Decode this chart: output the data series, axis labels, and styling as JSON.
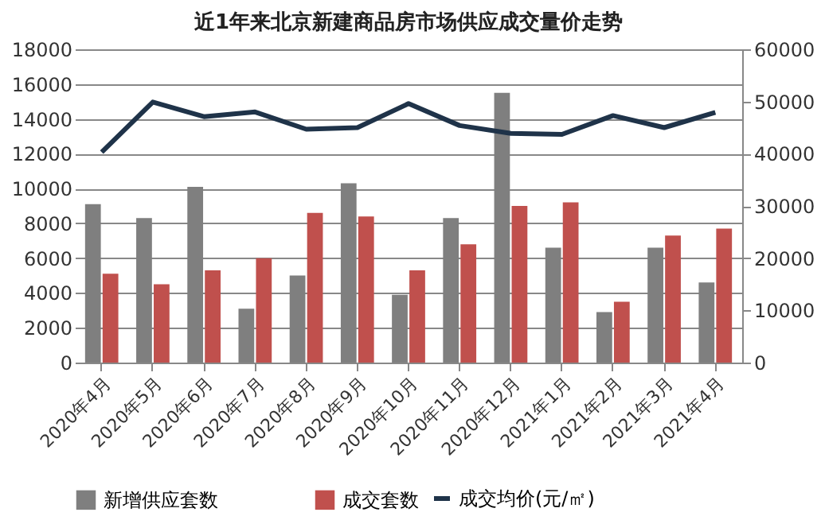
{
  "chart_data": {
    "type": "bar",
    "title": "近1年来北京新建商品房市场供应成交量价走势",
    "categories": [
      "2020年4月",
      "2020年5月",
      "2020年6月",
      "2020年7月",
      "2020年8月",
      "2020年9月",
      "2020年10月",
      "2020年11月",
      "2020年12月",
      "2021年1月",
      "2021年2月",
      "2021年3月",
      "2021年4月"
    ],
    "series": [
      {
        "name": "新增供应套数",
        "color": "#7f7f7f",
        "values": [
          9100,
          8300,
          10100,
          3100,
          5000,
          10300,
          3900,
          8300,
          15500,
          6600,
          2900,
          6600,
          4600
        ]
      },
      {
        "name": "成交套数",
        "color": "#c0504d",
        "values": [
          5100,
          4500,
          5300,
          6000,
          8600,
          8400,
          5300,
          6800,
          9000,
          9200,
          3500,
          7300,
          7700
        ]
      },
      {
        "name": "成交均价(元/㎡)",
        "type": "line",
        "axis": "y2",
        "color": "#1f3349",
        "values": [
          40300,
          49900,
          47100,
          48000,
          44700,
          45000,
          49600,
          45400,
          43900,
          43700,
          47300,
          45000,
          47900
        ]
      }
    ],
    "ylim": [
      0,
      18000
    ],
    "yticks": [
      0,
      2000,
      4000,
      6000,
      8000,
      10000,
      12000,
      14000,
      16000,
      18000
    ],
    "y2lim": [
      0,
      60000
    ],
    "y2ticks": [
      0,
      10000,
      20000,
      30000,
      40000,
      50000,
      60000
    ],
    "grid": "y",
    "legend": "bottom"
  }
}
